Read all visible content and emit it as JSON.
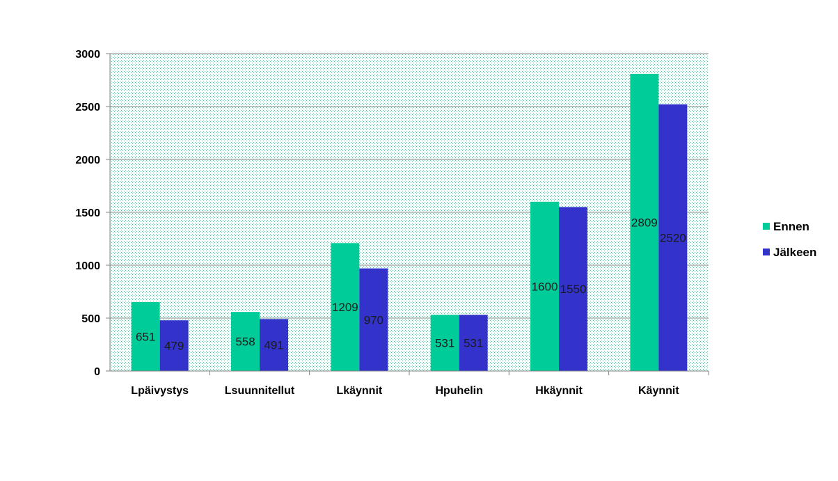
{
  "chart_data": {
    "type": "bar",
    "categories": [
      "Lpäivystys",
      "Lsuunnitellut",
      "Lkäynnit",
      "Hpuhelin",
      "Hkäynnit",
      "Käynnit"
    ],
    "series": [
      {
        "name": "Ennen",
        "values": [
          651,
          558,
          1209,
          531,
          1600,
          2809
        ],
        "color": "#00cc99"
      },
      {
        "name": "Jälkeen",
        "values": [
          479,
          491,
          970,
          531,
          1550,
          2520
        ],
        "color": "#3333cc"
      }
    ],
    "ylim": [
      0,
      3000
    ],
    "yticks": [
      0,
      500,
      1000,
      1500,
      2000,
      2500,
      3000
    ],
    "grid": true,
    "legend_position": "right",
    "plot_background": "dotted-green"
  }
}
